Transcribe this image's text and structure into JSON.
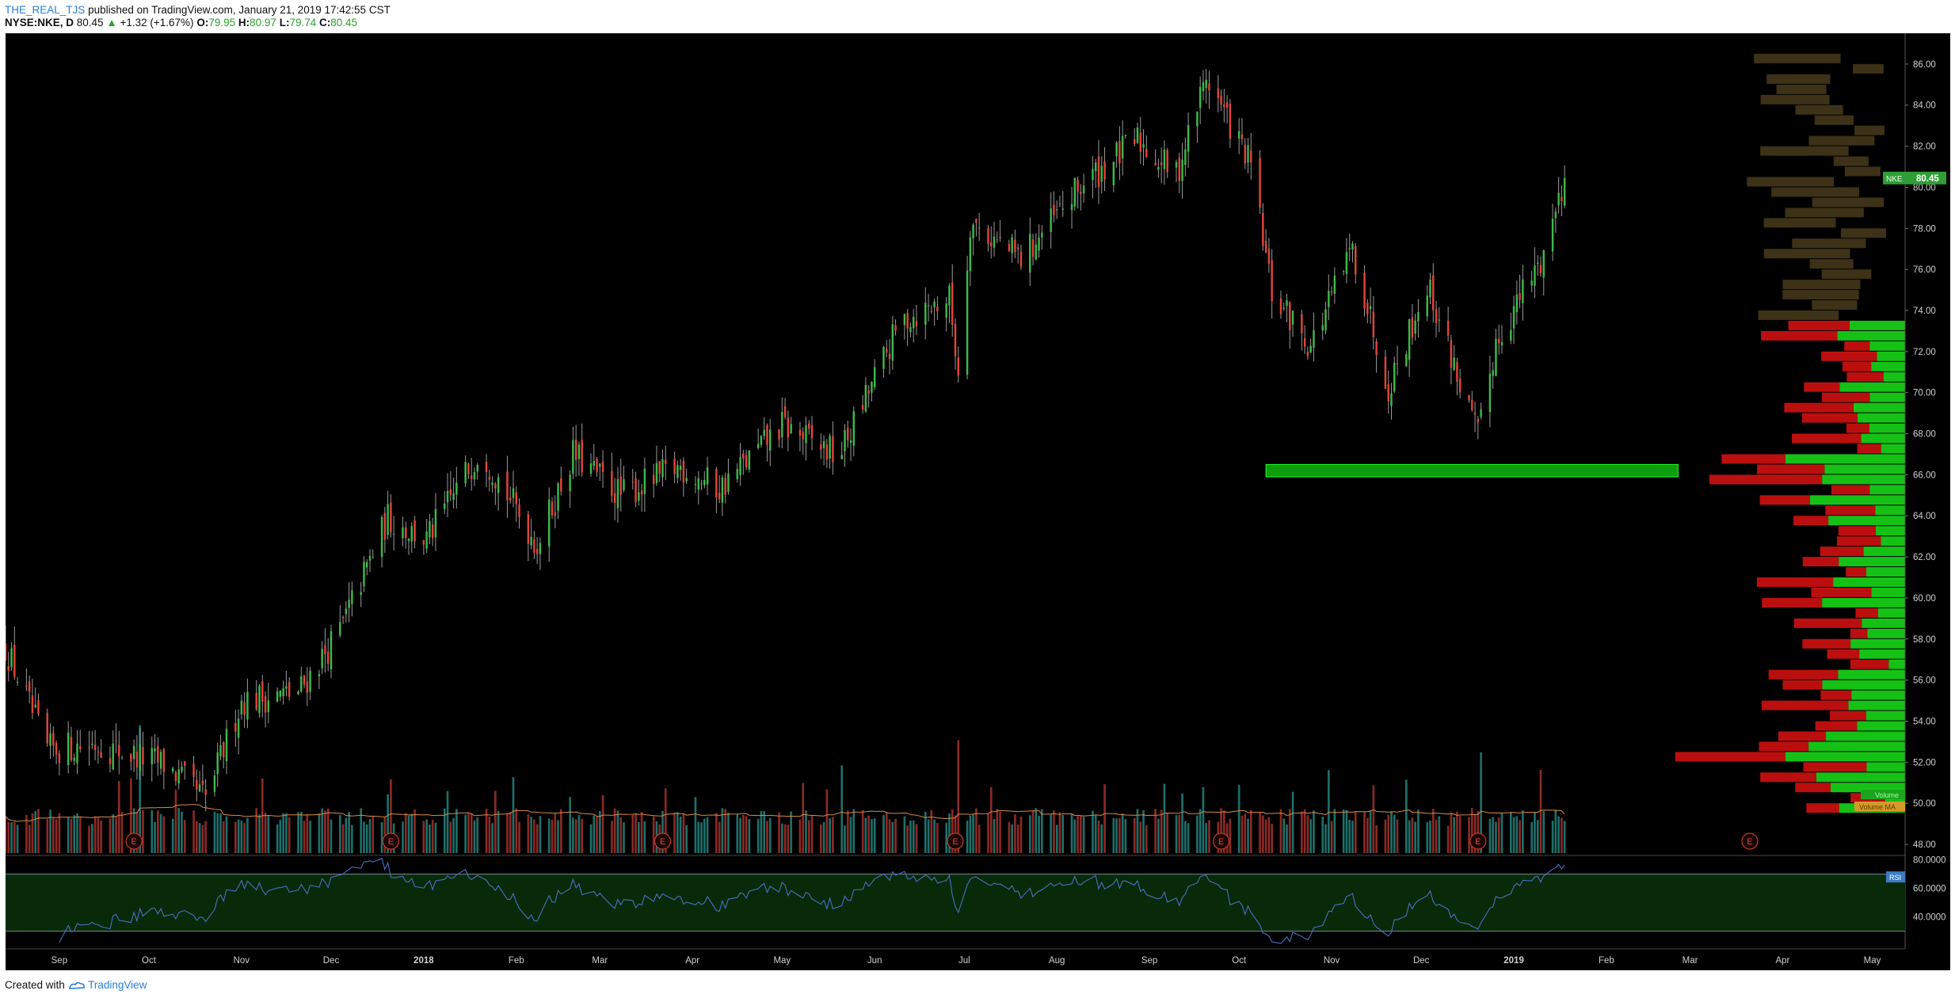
{
  "header": {
    "username": "THE_REAL_TJS",
    "published_text": "published on TradingView.com, January 21, 2019 17:42:55 CST",
    "symbol": "NYSE:NKE, D",
    "last": "80.45",
    "arrow": "▲",
    "change": "+1.32 (+1.67%)",
    "open_label": "O:",
    "open": "79.95",
    "high_label": "H:",
    "high": "80.97",
    "low_label": "L:",
    "low": "79.74",
    "close_label": "C:",
    "close": "80.45"
  },
  "footer": {
    "created_with": "Created with",
    "brand": "TradingView"
  },
  "colors": {
    "background": "#000000",
    "up": "#3fb84a",
    "down": "#e0453a",
    "volume_up": "#1e6f6a",
    "volume_down": "#8b2a26",
    "vp_up": "#16c116",
    "vp_down": "#bb0f0f",
    "vp_value_area_outside": "#3d3217",
    "support_zone": "#0fb80f",
    "rsi_line": "#4a6ec7",
    "rsi_band": "#082a08",
    "price_tag": "#2f9e35",
    "ma_line": "#d88a4a"
  },
  "chart_data": [
    {
      "type": "candlestick",
      "title": "NYSE:NKE, D",
      "price_axis_ticks": [
        "86.00",
        "84.00",
        "82.00",
        "80.00",
        "78.00",
        "76.00",
        "74.00",
        "72.00",
        "70.00",
        "68.00",
        "66.00",
        "64.00",
        "62.00",
        "60.00",
        "58.00",
        "56.00",
        "54.00",
        "52.00",
        "50.00",
        "48.00"
      ],
      "ylim": [
        47.5,
        87.5
      ],
      "time_axis_labels": [
        "Sep",
        "Oct",
        "Nov",
        "Dec",
        "2018",
        "Feb",
        "Mar",
        "Apr",
        "May",
        "Jun",
        "Jul",
        "Aug",
        "Sep",
        "Oct",
        "Nov",
        "Dec",
        "2019",
        "Feb",
        "Mar",
        "Apr",
        "May"
      ],
      "time_axis_bold": [
        "2018",
        "2019"
      ],
      "x_range": [
        "2017-08-14",
        "2019-05-12"
      ],
      "last_price_label": {
        "symbol": "NKE",
        "value": "80.45"
      },
      "key_points": [
        {
          "date": "2017-08-14",
          "close": 57.6
        },
        {
          "date": "2017-08-28",
          "close": 52.6
        },
        {
          "date": "2017-09-13",
          "close": 52.9
        },
        {
          "date": "2017-10-06",
          "close": 51.9
        },
        {
          "date": "2017-10-20",
          "close": 50.2
        },
        {
          "date": "2017-11-01",
          "close": 55.0
        },
        {
          "date": "2017-11-20",
          "close": 55.4
        },
        {
          "date": "2017-12-04",
          "close": 58.4
        },
        {
          "date": "2017-12-20",
          "close": 63.9
        },
        {
          "date": "2018-01-02",
          "close": 62.8
        },
        {
          "date": "2018-01-20",
          "close": 67.3
        },
        {
          "date": "2018-02-08",
          "close": 62.6
        },
        {
          "date": "2018-02-20",
          "close": 67.0
        },
        {
          "date": "2018-03-08",
          "close": 65.0
        },
        {
          "date": "2018-03-28",
          "close": 66.4
        },
        {
          "date": "2018-04-10",
          "close": 65.3
        },
        {
          "date": "2018-05-01",
          "close": 68.4
        },
        {
          "date": "2018-05-20",
          "close": 66.9
        },
        {
          "date": "2018-06-10",
          "close": 73.5
        },
        {
          "date": "2018-06-26",
          "close": 74.6
        },
        {
          "date": "2018-06-29",
          "close": 71.0
        },
        {
          "date": "2018-07-03",
          "close": 78.3
        },
        {
          "date": "2018-07-20",
          "close": 76.5
        },
        {
          "date": "2018-08-10",
          "close": 80.2
        },
        {
          "date": "2018-08-28",
          "close": 82.3
        },
        {
          "date": "2018-09-10",
          "close": 80.6
        },
        {
          "date": "2018-09-20",
          "close": 85.4
        },
        {
          "date": "2018-10-05",
          "close": 81.0
        },
        {
          "date": "2018-10-12",
          "close": 74.8
        },
        {
          "date": "2018-10-25",
          "close": 72.3
        },
        {
          "date": "2018-11-08",
          "close": 77.0
        },
        {
          "date": "2018-11-20",
          "close": 70.3
        },
        {
          "date": "2018-12-03",
          "close": 75.3
        },
        {
          "date": "2018-12-20",
          "close": 67.8
        },
        {
          "date": "2018-12-26",
          "close": 72.5
        },
        {
          "date": "2019-01-10",
          "close": 76.4
        },
        {
          "date": "2019-01-18",
          "close": 80.45
        }
      ]
    },
    {
      "type": "bar",
      "title": "Volume",
      "note": "daily volume histogram with moving average overlay",
      "earnings_markers": [
        {
          "date": "2017-09-26",
          "label": "E"
        },
        {
          "date": "2017-12-21",
          "label": "E"
        },
        {
          "date": "2018-03-22",
          "label": "E"
        },
        {
          "date": "2018-06-28",
          "label": "E"
        },
        {
          "date": "2018-09-25",
          "label": "E"
        },
        {
          "date": "2018-12-20",
          "label": "E"
        },
        {
          "date": "2019-03-21",
          "label": "E"
        }
      ]
    },
    {
      "type": "bar",
      "title": "Volume profile",
      "orientation": "horizontal",
      "legend": [
        "Volume",
        "Volume MA"
      ],
      "support_zone": {
        "from": 65.9,
        "to": 66.5,
        "start_date": "2018-10-10",
        "end_date": "2019-02-25"
      }
    },
    {
      "type": "line",
      "title": "RSI",
      "label": "RSI",
      "ticks": [
        "80.0000",
        "60.0000",
        "40.0000"
      ],
      "ylim": [
        17,
        82
      ],
      "bands": [
        30,
        70
      ]
    }
  ]
}
